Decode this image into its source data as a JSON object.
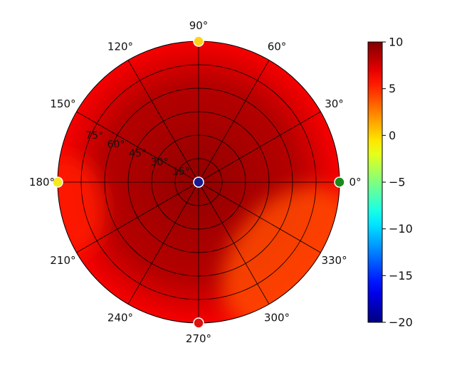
{
  "chart_data": {
    "type": "heatmap",
    "subtype": "polar",
    "title": "",
    "angular_ticks": [
      "0°",
      "30°",
      "60°",
      "90°",
      "120°",
      "150°",
      "180°",
      "210°",
      "240°",
      "270°",
      "300°",
      "330°"
    ],
    "angular_tick_values": [
      0,
      30,
      60,
      90,
      120,
      150,
      180,
      210,
      240,
      270,
      300,
      330
    ],
    "radial_ticks": [
      "15°",
      "30°",
      "45°",
      "60°",
      "75°"
    ],
    "radial_tick_values": [
      15,
      30,
      45,
      60,
      75
    ],
    "radial_range": [
      0,
      90
    ],
    "grid": true,
    "colorbar": {
      "position": "right",
      "colormap": "jet",
      "range": [
        -20,
        10
      ],
      "ticks": [
        "10",
        "5",
        "0",
        "−5",
        "−10",
        "−15",
        "−20"
      ],
      "tick_values": [
        10,
        5,
        0,
        -5,
        -10,
        -15,
        -20
      ]
    },
    "field": {
      "center_value": 9.5,
      "edge_value": 6.5,
      "low_regions": [
        {
          "azimuth": 320,
          "elevation_from": 50,
          "elevation_to": 90,
          "value": 4.0
        },
        {
          "azimuth": 190,
          "elevation_from": 65,
          "elevation_to": 90,
          "value": 5.5
        }
      ]
    },
    "markers": [
      {
        "azimuth": 0,
        "radius": 90,
        "color": "#1a8a1a",
        "value": -4
      },
      {
        "azimuth": 90,
        "radius": 90,
        "color": "#ffd21a",
        "value": 1.5
      },
      {
        "azimuth": 180,
        "radius": 90,
        "color": "#f5ea1a",
        "value": 0.5
      },
      {
        "azimuth": 270,
        "radius": 90,
        "color": "#e01010",
        "value": 8
      },
      {
        "azimuth": 0,
        "radius": 0,
        "color": "#1a1a90",
        "value": -19
      }
    ]
  }
}
